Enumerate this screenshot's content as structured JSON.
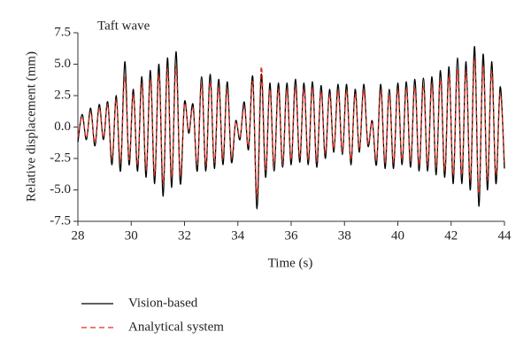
{
  "chart_data": {
    "type": "line",
    "title": "Taft wave",
    "xlabel": "Time (s)",
    "ylabel": "Relative displacement (mm)",
    "x": [
      28,
      28.16,
      28.32,
      28.48,
      28.64,
      28.8,
      28.96,
      29.12,
      29.28,
      29.44,
      29.6,
      29.76,
      29.92,
      30.08,
      30.24,
      30.4,
      30.56,
      30.72,
      30.88,
      31.04,
      31.2,
      31.36,
      31.52,
      31.68,
      31.84,
      32,
      32.16,
      32.32,
      32.48,
      32.64,
      32.8,
      32.96,
      33.12,
      33.28,
      33.44,
      33.6,
      33.76,
      33.92,
      34.08,
      34.24,
      34.4,
      34.56,
      34.72,
      34.88,
      35.04,
      35.2,
      35.36,
      35.52,
      35.68,
      35.84,
      36,
      36.16,
      36.32,
      36.48,
      36.64,
      36.8,
      36.96,
      37.12,
      37.28,
      37.44,
      37.6,
      37.76,
      37.92,
      38.08,
      38.24,
      38.4,
      38.56,
      38.72,
      38.88,
      39.04,
      39.2,
      39.36,
      39.52,
      39.68,
      39.84,
      40,
      40.16,
      40.32,
      40.48,
      40.64,
      40.8,
      40.96,
      41.12,
      41.28,
      41.44,
      41.6,
      41.76,
      41.92,
      42.08,
      42.24,
      42.4,
      42.56,
      42.72,
      42.88,
      43.04,
      43.2,
      43.36,
      43.52,
      43.68,
      43.84,
      44
    ],
    "series": [
      {
        "name": "Vision-based",
        "color": "#000000",
        "dash": "solid",
        "values": [
          -1.2,
          1.0,
          -1.0,
          1.5,
          -1.5,
          1.8,
          -1.0,
          2.0,
          -3.0,
          2.5,
          -3.5,
          5.2,
          -3.0,
          3.0,
          -3.5,
          4.0,
          -4.0,
          4.5,
          -4.5,
          5.0,
          -5.5,
          5.5,
          -4.8,
          6.0,
          -4.5,
          2.0,
          -0.5,
          1.8,
          -3.5,
          4.0,
          -3.5,
          4.2,
          -3.3,
          3.8,
          -3.0,
          3.6,
          -2.8,
          0.5,
          -1.0,
          2.0,
          -1.8,
          4.0,
          -6.5,
          4.2,
          -4.0,
          3.5,
          -3.5,
          3.5,
          -3.2,
          3.5,
          -3.0,
          3.8,
          -2.8,
          3.5,
          -3.0,
          3.6,
          -3.2,
          3.3,
          -2.5,
          3.0,
          -2.0,
          3.4,
          -2.2,
          3.4,
          -3.0,
          3.0,
          -2.0,
          3.4,
          -1.5,
          0.5,
          -3.0,
          3.4,
          -3.3,
          3.0,
          -3.3,
          3.5,
          -3.0,
          3.6,
          -3.2,
          3.8,
          -3.5,
          3.9,
          -3.5,
          4.0,
          -3.8,
          4.5,
          -4.0,
          4.8,
          -4.5,
          5.5,
          -4.5,
          5.2,
          -5.0,
          6.4,
          -6.3,
          5.8,
          -5.0,
          5.2,
          -4.5,
          3.2,
          -3.3
        ]
      },
      {
        "name": "Analytical system",
        "color": "#e0301e",
        "dash": "dashed",
        "values": [
          -0.8,
          0.8,
          -0.8,
          1.2,
          -1.2,
          1.5,
          -0.8,
          1.8,
          -2.5,
          2.2,
          -2.8,
          4.0,
          -2.6,
          2.6,
          -3.0,
          3.4,
          -3.4,
          3.8,
          -3.8,
          4.2,
          -4.5,
          4.6,
          -4.0,
          4.8,
          -3.8,
          1.8,
          -0.3,
          1.5,
          -3.0,
          3.4,
          -3.0,
          3.6,
          -2.8,
          3.2,
          -2.5,
          3.0,
          -2.4,
          0.4,
          -0.8,
          1.6,
          -1.5,
          3.6,
          -5.5,
          4.8,
          -3.4,
          3.0,
          -3.0,
          3.0,
          -2.8,
          3.0,
          -2.6,
          3.2,
          -2.4,
          3.0,
          -2.6,
          3.1,
          -2.7,
          2.8,
          -2.1,
          2.6,
          -1.7,
          2.9,
          -1.9,
          2.9,
          -2.6,
          2.6,
          -1.7,
          2.9,
          -1.3,
          0.4,
          -2.6,
          2.9,
          -2.8,
          2.6,
          -2.8,
          3.0,
          -2.6,
          3.1,
          -2.7,
          3.2,
          -3.0,
          3.3,
          -3.0,
          3.4,
          -3.2,
          3.8,
          -3.4,
          4.1,
          -3.8,
          4.6,
          -3.8,
          4.4,
          -4.2,
          5.4,
          -5.3,
          4.9,
          -4.2,
          4.4,
          -3.8,
          2.7,
          -2.8
        ]
      }
    ],
    "xlim": [
      28,
      44
    ],
    "xticks": [
      28,
      30,
      32,
      34,
      36,
      38,
      40,
      42,
      44
    ],
    "ylim": [
      -7.5,
      7.5
    ],
    "yticks": [
      -7.5,
      {
        "value": -5,
        "label": "-5.0"
      },
      -2.5,
      {
        "value": 0,
        "label": "0.0"
      },
      2.5,
      {
        "value": 5,
        "label": "5.0"
      },
      7.5
    ],
    "legend": "bottom-left"
  }
}
